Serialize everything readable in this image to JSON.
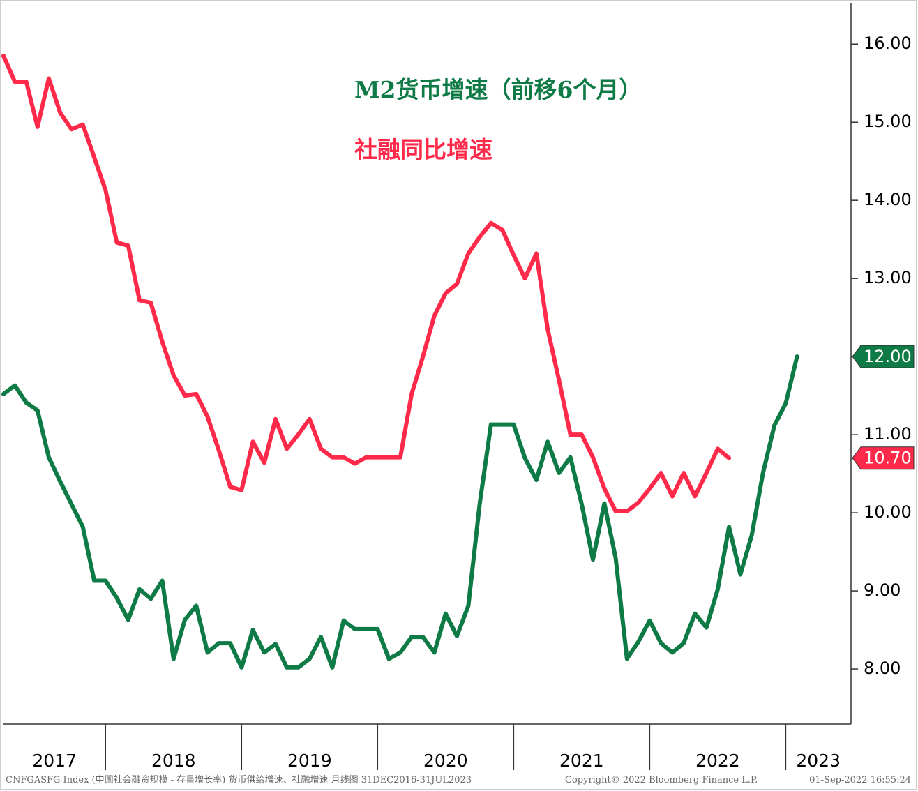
{
  "chart_data": {
    "type": "line",
    "legend": [
      "M2货币增速（前移6个月）",
      "社融同比增速"
    ],
    "footer": [
      "CNFGASFG Index (中国社会融资规模 - 存量增长率) 货币供给增速、社融增速  月线图 31DEC2016-31JUL2023",
      "Copyright© 2022 Bloomberg Finance L.P.",
      "01-Sep-2022 16:55:24"
    ],
    "x": [
      2017.25,
      2017.333,
      2017.417,
      2017.5,
      2017.583,
      2017.667,
      2017.75,
      2017.833,
      2017.917,
      2018,
      2018.083,
      2018.167,
      2018.25,
      2018.333,
      2018.417,
      2018.5,
      2018.583,
      2018.667,
      2018.75,
      2018.833,
      2018.917,
      2019,
      2019.083,
      2019.167,
      2019.25,
      2019.333,
      2019.417,
      2019.5,
      2019.583,
      2019.667,
      2019.75,
      2019.833,
      2019.917,
      2020,
      2020.083,
      2020.167,
      2020.25,
      2020.333,
      2020.417,
      2020.5,
      2020.583,
      2020.667,
      2020.75,
      2020.833,
      2020.917,
      2021,
      2021.083,
      2021.167,
      2021.25,
      2021.333,
      2021.417,
      2021.5,
      2021.583,
      2021.667,
      2021.75,
      2021.833,
      2021.917,
      2022,
      2022.083,
      2022.167,
      2022.25,
      2022.333,
      2022.417,
      2022.5,
      2022.583,
      2022.667,
      2022.75,
      2022.833,
      2022.917,
      2023,
      2023.083
    ],
    "series": [
      {
        "name": "M2货币增速（前移6个月）",
        "color": "#0e7a45",
        "values": [
          11.52,
          11.63,
          11.41,
          11.31,
          10.71,
          10.4,
          10.11,
          9.82,
          9.13,
          9.13,
          8.91,
          8.63,
          9.02,
          8.9,
          9.13,
          8.13,
          8.63,
          8.81,
          8.21,
          8.33,
          8.33,
          8.02,
          8.5,
          8.21,
          8.32,
          8.02,
          8.02,
          8.13,
          8.41,
          8.02,
          8.62,
          8.51,
          8.51,
          8.51,
          8.13,
          8.21,
          8.41,
          8.41,
          8.21,
          8.71,
          8.42,
          8.81,
          10.11,
          11.13,
          11.13,
          11.13,
          10.7,
          10.42,
          10.91,
          10.51,
          10.71,
          10.11,
          9.4,
          10.12,
          9.42,
          8.13,
          8.35,
          8.62,
          8.33,
          8.21,
          8.33,
          8.71,
          8.53,
          9.02,
          9.82,
          9.21,
          9.71,
          10.51,
          11.12,
          11.4,
          12.0
        ],
        "value_labels": [
          null,
          null,
          null,
          null,
          null,
          null,
          null,
          null,
          null,
          null,
          null,
          null,
          null,
          null,
          null,
          null,
          null,
          null,
          null,
          null,
          null,
          null,
          null,
          null,
          null,
          null,
          null,
          null,
          null,
          null,
          null,
          null,
          null,
          null,
          null,
          null,
          null,
          null,
          null,
          null,
          null,
          null,
          null,
          null,
          null,
          null,
          null,
          null,
          null,
          null,
          null,
          null,
          null,
          null,
          null,
          null,
          null,
          null,
          null,
          null,
          null,
          null,
          null,
          null,
          null,
          null,
          null,
          null,
          null,
          null,
          "12.00"
        ]
      },
      {
        "name": "社融同比增速",
        "color": "#ff2a4a",
        "values": [
          15.85,
          15.52,
          15.52,
          14.94,
          15.56,
          15.12,
          14.91,
          14.97,
          14.55,
          14.13,
          13.46,
          13.42,
          12.72,
          12.69,
          12.19,
          11.76,
          11.5,
          11.52,
          11.23,
          10.8,
          10.33,
          10.29,
          10.91,
          10.64,
          11.2,
          10.82,
          11.0,
          11.2,
          10.82,
          10.71,
          10.71,
          10.63,
          10.71,
          10.71,
          10.71,
          10.71,
          11.52,
          12.0,
          12.52,
          12.81,
          12.93,
          13.32,
          13.53,
          13.71,
          13.62,
          13.3,
          13.0,
          13.32,
          12.35,
          11.7,
          11.0,
          11.0,
          10.71,
          10.31,
          10.02,
          10.02,
          10.13,
          10.31,
          10.51,
          10.21,
          10.51,
          10.21,
          10.51,
          10.82,
          10.7,
          null,
          null,
          null,
          null,
          null,
          null
        ],
        "value_labels": [
          null,
          null,
          null,
          null,
          null,
          null,
          null,
          null,
          null,
          null,
          null,
          null,
          null,
          null,
          null,
          null,
          null,
          null,
          null,
          null,
          null,
          null,
          null,
          null,
          null,
          null,
          null,
          null,
          null,
          null,
          null,
          null,
          null,
          null,
          null,
          null,
          null,
          null,
          null,
          null,
          null,
          null,
          null,
          null,
          null,
          null,
          null,
          null,
          null,
          null,
          null,
          null,
          null,
          null,
          null,
          null,
          null,
          null,
          null,
          null,
          null,
          null,
          null,
          null,
          "10.70",
          null,
          null,
          null,
          null,
          null,
          null
        ]
      }
    ],
    "xlim": [
      2017.25,
      2023.48
    ],
    "xticks": [
      2017,
      2018,
      2019,
      2020,
      2021,
      2022,
      2023
    ],
    "ylim": [
      7.295,
      16.52
    ],
    "yticks": [
      {
        "value": 8,
        "label": "8.00"
      },
      {
        "value": 9,
        "label": "9.00"
      },
      {
        "value": 10,
        "label": "10.00"
      },
      {
        "value": 11,
        "label": "11.00"
      },
      {
        "value": 12,
        "label": "12.00"
      },
      {
        "value": 13,
        "label": "13.00"
      },
      {
        "value": 14,
        "label": "14.00"
      },
      {
        "value": 15,
        "label": "15.00"
      },
      {
        "value": 16,
        "label": "16.00"
      }
    ],
    "yaxis_side": "right",
    "grid": false
  }
}
